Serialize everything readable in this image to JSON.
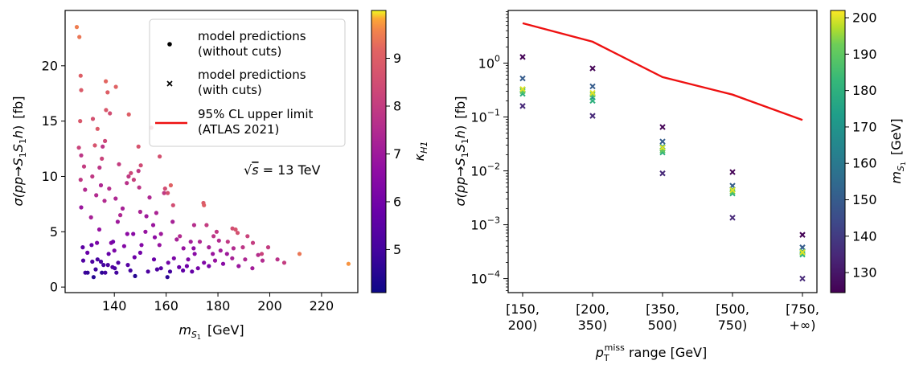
{
  "chart_data": [
    {
      "type": "scatter",
      "panel": "left",
      "xlabel": "m_S1 [GeV]",
      "xlabel_main": "m",
      "xlabel_sub": "S",
      "xlabel_subsub": "1",
      "xlabel_unit": "[GeV]",
      "ylabel": "σ(pp→S1S1h) [fb]",
      "ylabel_prefix": "σ(pp→",
      "ylabel_S": "S",
      "ylabel_sub1": "1",
      "ylabel_S2": "S",
      "ylabel_sub2": "1",
      "ylabel_h": "h",
      "ylabel_suffix": ")",
      "ylabel_unit": "[fb]",
      "xlim": [
        121,
        234
      ],
      "ylim": [
        -0.5,
        25
      ],
      "xticks": [
        140,
        160,
        180,
        200,
        220
      ],
      "xtick_labels": [
        "140",
        "160",
        "180",
        "200",
        "220"
      ],
      "yticks": [
        0,
        5,
        10,
        15,
        20
      ],
      "ytick_labels": [
        "0",
        "5",
        "10",
        "15",
        "20"
      ],
      "annotation_sqrt": "√",
      "annotation_s": "s",
      "annotation_rest": " = 13 TeV",
      "colorbar": {
        "label_main": "κ",
        "label_sub": "H1",
        "range": [
          4.1,
          10.0
        ],
        "ticks": [
          5,
          6,
          7,
          8,
          9
        ],
        "tick_labels": [
          "5",
          "6",
          "7",
          "8",
          "9"
        ],
        "colormap": "plasma"
      },
      "legend": {
        "placement": "top-right",
        "entries": [
          {
            "marker": "dot",
            "line1": "model predictions",
            "line2": "(without cuts)"
          },
          {
            "marker": "cross",
            "line1": "model predictions",
            "line2": "(with cuts)"
          },
          {
            "marker": "line",
            "color": "#ee1111",
            "line1": "95% CL upper limit",
            "line2": "(ATLAS 2021)"
          }
        ]
      },
      "points": [
        [
          125.5,
          23.5,
          9.5
        ],
        [
          126.5,
          22.6,
          9.4
        ],
        [
          127,
          19.1,
          9.0
        ],
        [
          127.2,
          17.8,
          8.9
        ],
        [
          126.8,
          15.0,
          8.8
        ],
        [
          126.3,
          12.6,
          8.2
        ],
        [
          127.2,
          11.9,
          7.8
        ],
        [
          128.3,
          10.9,
          8.0
        ],
        [
          127,
          9.7,
          7.9
        ],
        [
          128.7,
          8.8,
          7.5
        ],
        [
          127.2,
          7.2,
          6.9
        ],
        [
          127.8,
          3.6,
          5.5
        ],
        [
          128,
          2.4,
          5.3
        ],
        [
          128.8,
          1.3,
          4.9
        ],
        [
          129.7,
          1.3,
          4.7
        ],
        [
          129.6,
          3.1,
          5.8
        ],
        [
          131.2,
          3.8,
          5.7
        ],
        [
          131.5,
          2.3,
          5.2
        ],
        [
          132,
          0.9,
          4.5
        ],
        [
          132.8,
          1.6,
          4.9
        ],
        [
          133.5,
          2.5,
          5.1
        ],
        [
          133.3,
          4.0,
          6.2
        ],
        [
          131.7,
          15.2,
          8.6
        ],
        [
          133.5,
          14.3,
          8.9
        ],
        [
          132.5,
          12.8,
          8.7
        ],
        [
          131.5,
          10.0,
          7.9
        ],
        [
          134.3,
          10.8,
          7.8
        ],
        [
          135.2,
          11.6,
          8.2
        ],
        [
          133,
          8.3,
          7.5
        ],
        [
          134.8,
          9.2,
          7.4
        ],
        [
          135.5,
          12.7,
          7.8
        ],
        [
          136.4,
          13.2,
          8.3
        ],
        [
          136.7,
          18.6,
          9.2
        ],
        [
          137.4,
          17.6,
          9.0
        ],
        [
          136.8,
          16.0,
          8.8
        ],
        [
          138.3,
          15.7,
          8.5
        ],
        [
          140.6,
          18.1,
          9.1
        ],
        [
          134.8,
          2.3,
          5.1
        ],
        [
          135.8,
          2.0,
          5.0
        ],
        [
          135.2,
          1.3,
          4.6
        ],
        [
          136.5,
          1.3,
          5.0
        ],
        [
          137.5,
          2.0,
          5.2
        ],
        [
          137.8,
          3.0,
          5.7
        ],
        [
          138.8,
          4.0,
          6.4
        ],
        [
          139.3,
          1.8,
          5.3
        ],
        [
          140.2,
          1.7,
          5.1
        ],
        [
          140.8,
          1.3,
          5.0
        ],
        [
          141.5,
          2.2,
          5.3
        ],
        [
          141.3,
          5.9,
          7.0
        ],
        [
          142.3,
          6.5,
          7.4
        ],
        [
          144.8,
          9.4,
          7.7
        ],
        [
          145.5,
          10.0,
          7.9
        ],
        [
          146.4,
          10.3,
          8.3
        ],
        [
          147.5,
          9.7,
          8.1
        ],
        [
          149.3,
          10.5,
          7.9
        ],
        [
          150.2,
          11.0,
          8.4
        ],
        [
          149.6,
          9.0,
          7.8
        ],
        [
          153.6,
          8.1,
          7.4
        ],
        [
          152.4,
          6.4,
          7.0
        ],
        [
          155,
          5.6,
          6.9
        ],
        [
          155.6,
          4.5,
          6.6
        ],
        [
          157.4,
          3.8,
          6.8
        ],
        [
          158,
          4.8,
          7.0
        ],
        [
          156.2,
          6.7,
          7.3
        ],
        [
          159.2,
          8.5,
          7.9
        ],
        [
          159.6,
          8.9,
          8.5
        ],
        [
          160.6,
          8.5,
          8.6
        ],
        [
          161.8,
          9.2,
          9.1
        ],
        [
          162.7,
          7.4,
          8.5
        ],
        [
          164.1,
          4.3,
          7.2
        ],
        [
          166.7,
          3.5,
          6.8
        ],
        [
          169.5,
          4.1,
          7.1
        ],
        [
          170.6,
          3.5,
          6.6
        ],
        [
          170.8,
          5.6,
          7.6
        ],
        [
          173,
          4.1,
          7.4
        ],
        [
          174.4,
          7.6,
          8.9
        ],
        [
          174.6,
          7.4,
          9.0
        ],
        [
          175.6,
          5.6,
          8.0
        ],
        [
          178.3,
          4.6,
          7.8
        ],
        [
          179.5,
          5.0,
          7.9
        ],
        [
          180.4,
          4.2,
          7.5
        ],
        [
          183.8,
          4.1,
          7.9
        ],
        [
          185.6,
          5.3,
          8.5
        ],
        [
          186.8,
          5.2,
          8.7
        ],
        [
          187.6,
          4.9,
          8.6
        ],
        [
          189.6,
          3.6,
          7.8
        ],
        [
          191.4,
          4.6,
          8.2
        ],
        [
          193.5,
          4.0,
          8.0
        ],
        [
          196.9,
          3.0,
          8.2
        ],
        [
          199.4,
          3.6,
          8.0
        ],
        [
          203,
          2.5,
          7.7
        ],
        [
          205.6,
          2.2,
          8.0
        ],
        [
          211.5,
          3.0,
          9.4
        ],
        [
          230.4,
          2.1,
          9.7
        ],
        [
          139.5,
          4.1,
          6.0
        ],
        [
          145.2,
          2.0,
          5.4
        ],
        [
          146.2,
          1.5,
          5.0
        ],
        [
          148,
          1.0,
          4.5
        ],
        [
          150,
          3.1,
          6.0
        ],
        [
          153,
          1.4,
          5.2
        ],
        [
          155.3,
          2.5,
          5.8
        ],
        [
          156.5,
          1.6,
          5.2
        ],
        [
          158,
          1.7,
          5.4
        ],
        [
          160.5,
          0.9,
          4.6
        ],
        [
          161.5,
          1.4,
          5.0
        ],
        [
          163,
          2.6,
          6.2
        ],
        [
          165,
          1.8,
          5.8
        ],
        [
          166.5,
          1.5,
          5.6
        ],
        [
          168,
          1.9,
          5.9
        ],
        [
          170,
          1.4,
          5.7
        ],
        [
          172.3,
          1.7,
          6.1
        ],
        [
          174.6,
          2.2,
          6.3
        ],
        [
          176.5,
          1.9,
          6.2
        ],
        [
          178.9,
          2.4,
          6.8
        ],
        [
          182,
          2.1,
          6.5
        ],
        [
          185.5,
          2.6,
          7.2
        ],
        [
          188,
          1.9,
          6.9
        ],
        [
          190.5,
          2.5,
          7.4
        ],
        [
          193.3,
          1.7,
          7.1
        ],
        [
          195.5,
          2.9,
          7.6
        ],
        [
          197.2,
          2.4,
          7.5
        ],
        [
          145.6,
          15.6,
          9.0
        ],
        [
          149.3,
          12.7,
          8.7
        ],
        [
          154.3,
          14.4,
          8.8
        ],
        [
          157.5,
          11.8,
          8.6
        ],
        [
          140.5,
          8.0,
          7.4
        ],
        [
          143.2,
          7.1,
          7.2
        ],
        [
          145,
          4.8,
          6.6
        ],
        [
          147.3,
          4.8,
          6.5
        ],
        [
          150,
          6.8,
          7.3
        ],
        [
          152,
          5.0,
          6.8
        ],
        [
          150.5,
          3.8,
          6.4
        ],
        [
          162.5,
          5.9,
          7.2
        ],
        [
          165.3,
          4.6,
          7.5
        ],
        [
          176.5,
          3.6,
          7.2
        ],
        [
          181,
          3.3,
          7.1
        ],
        [
          183.5,
          3.0,
          7.0
        ],
        [
          186,
          3.5,
          7.5
        ],
        [
          178,
          3.0,
          6.9
        ],
        [
          160.8,
          2.2,
          6.0
        ],
        [
          171,
          3.0,
          6.5
        ],
        [
          168.5,
          2.5,
          6.3
        ],
        [
          140,
          3.3,
          6.2
        ],
        [
          143.8,
          3.7,
          6.4
        ],
        [
          147.8,
          2.7,
          5.9
        ],
        [
          134.2,
          5.2,
          6.8
        ],
        [
          131,
          6.3,
          7.2
        ],
        [
          136.2,
          7.8,
          7.5
        ],
        [
          138,
          8.9,
          7.6
        ],
        [
          141.8,
          11.1,
          8.0
        ]
      ]
    },
    {
      "type": "scatter+line",
      "panel": "right",
      "xlabel": "pT miss range [GeV]",
      "xlabel_main": "p",
      "xlabel_sub": "T",
      "xlabel_sup": "miss",
      "xlabel_rest": " range  [GeV]",
      "ylabel": "σ(pp→S1S1h) [fb]",
      "yscale": "log",
      "ylim": [
        5.5e-05,
        9.5
      ],
      "yticks": [
        0.0001,
        0.001,
        0.01,
        0.1,
        1
      ],
      "ytick_base": "10",
      "ytick_exps": [
        "−4",
        "−3",
        "−2",
        "−1",
        "0"
      ],
      "categories": [
        [
          "[150,",
          "200)"
        ],
        [
          "[200,",
          "350)"
        ],
        [
          "[350,",
          "500)"
        ],
        [
          "[500,",
          "750)"
        ],
        [
          "[750,",
          "+∞)"
        ]
      ],
      "colorbar": {
        "label_main": "m",
        "label_sub": "S",
        "label_subsub": "1",
        "label_unit": "[GeV]",
        "range": [
          124.5,
          202
        ],
        "ticks": [
          130,
          140,
          150,
          160,
          170,
          180,
          190,
          200
        ],
        "tick_labels": [
          "130",
          "140",
          "150",
          "160",
          "170",
          "180",
          "190",
          "200"
        ],
        "colormap": "viridis"
      },
      "limit_line": {
        "name": "95% CL upper limit (ATLAS 2021)",
        "color": "#ee1111",
        "values": [
          5.5,
          2.5,
          0.55,
          0.26,
          0.088
        ]
      },
      "series": [
        {
          "m": 125,
          "values": [
            1.3,
            0.8,
            0.065,
            0.0095,
            0.00065
          ]
        },
        {
          "m": 135,
          "values": [
            0.16,
            0.105,
            0.009,
            0.00135,
            0.0001
          ]
        },
        {
          "m": 150,
          "values": [
            0.52,
            0.37,
            0.035,
            0.0053,
            0.00038
          ]
        },
        {
          "m": 170,
          "values": [
            0.32,
            0.23,
            0.028,
            0.0045,
            0.00032
          ]
        },
        {
          "m": 180,
          "values": [
            0.27,
            0.2,
            0.022,
            0.0038,
            0.00028
          ]
        },
        {
          "m": 190,
          "values": [
            0.3,
            0.26,
            0.024,
            0.0041,
            0.0003
          ]
        },
        {
          "m": 200,
          "values": [
            0.33,
            0.28,
            0.027,
            0.0044,
            0.00031
          ]
        }
      ]
    }
  ]
}
